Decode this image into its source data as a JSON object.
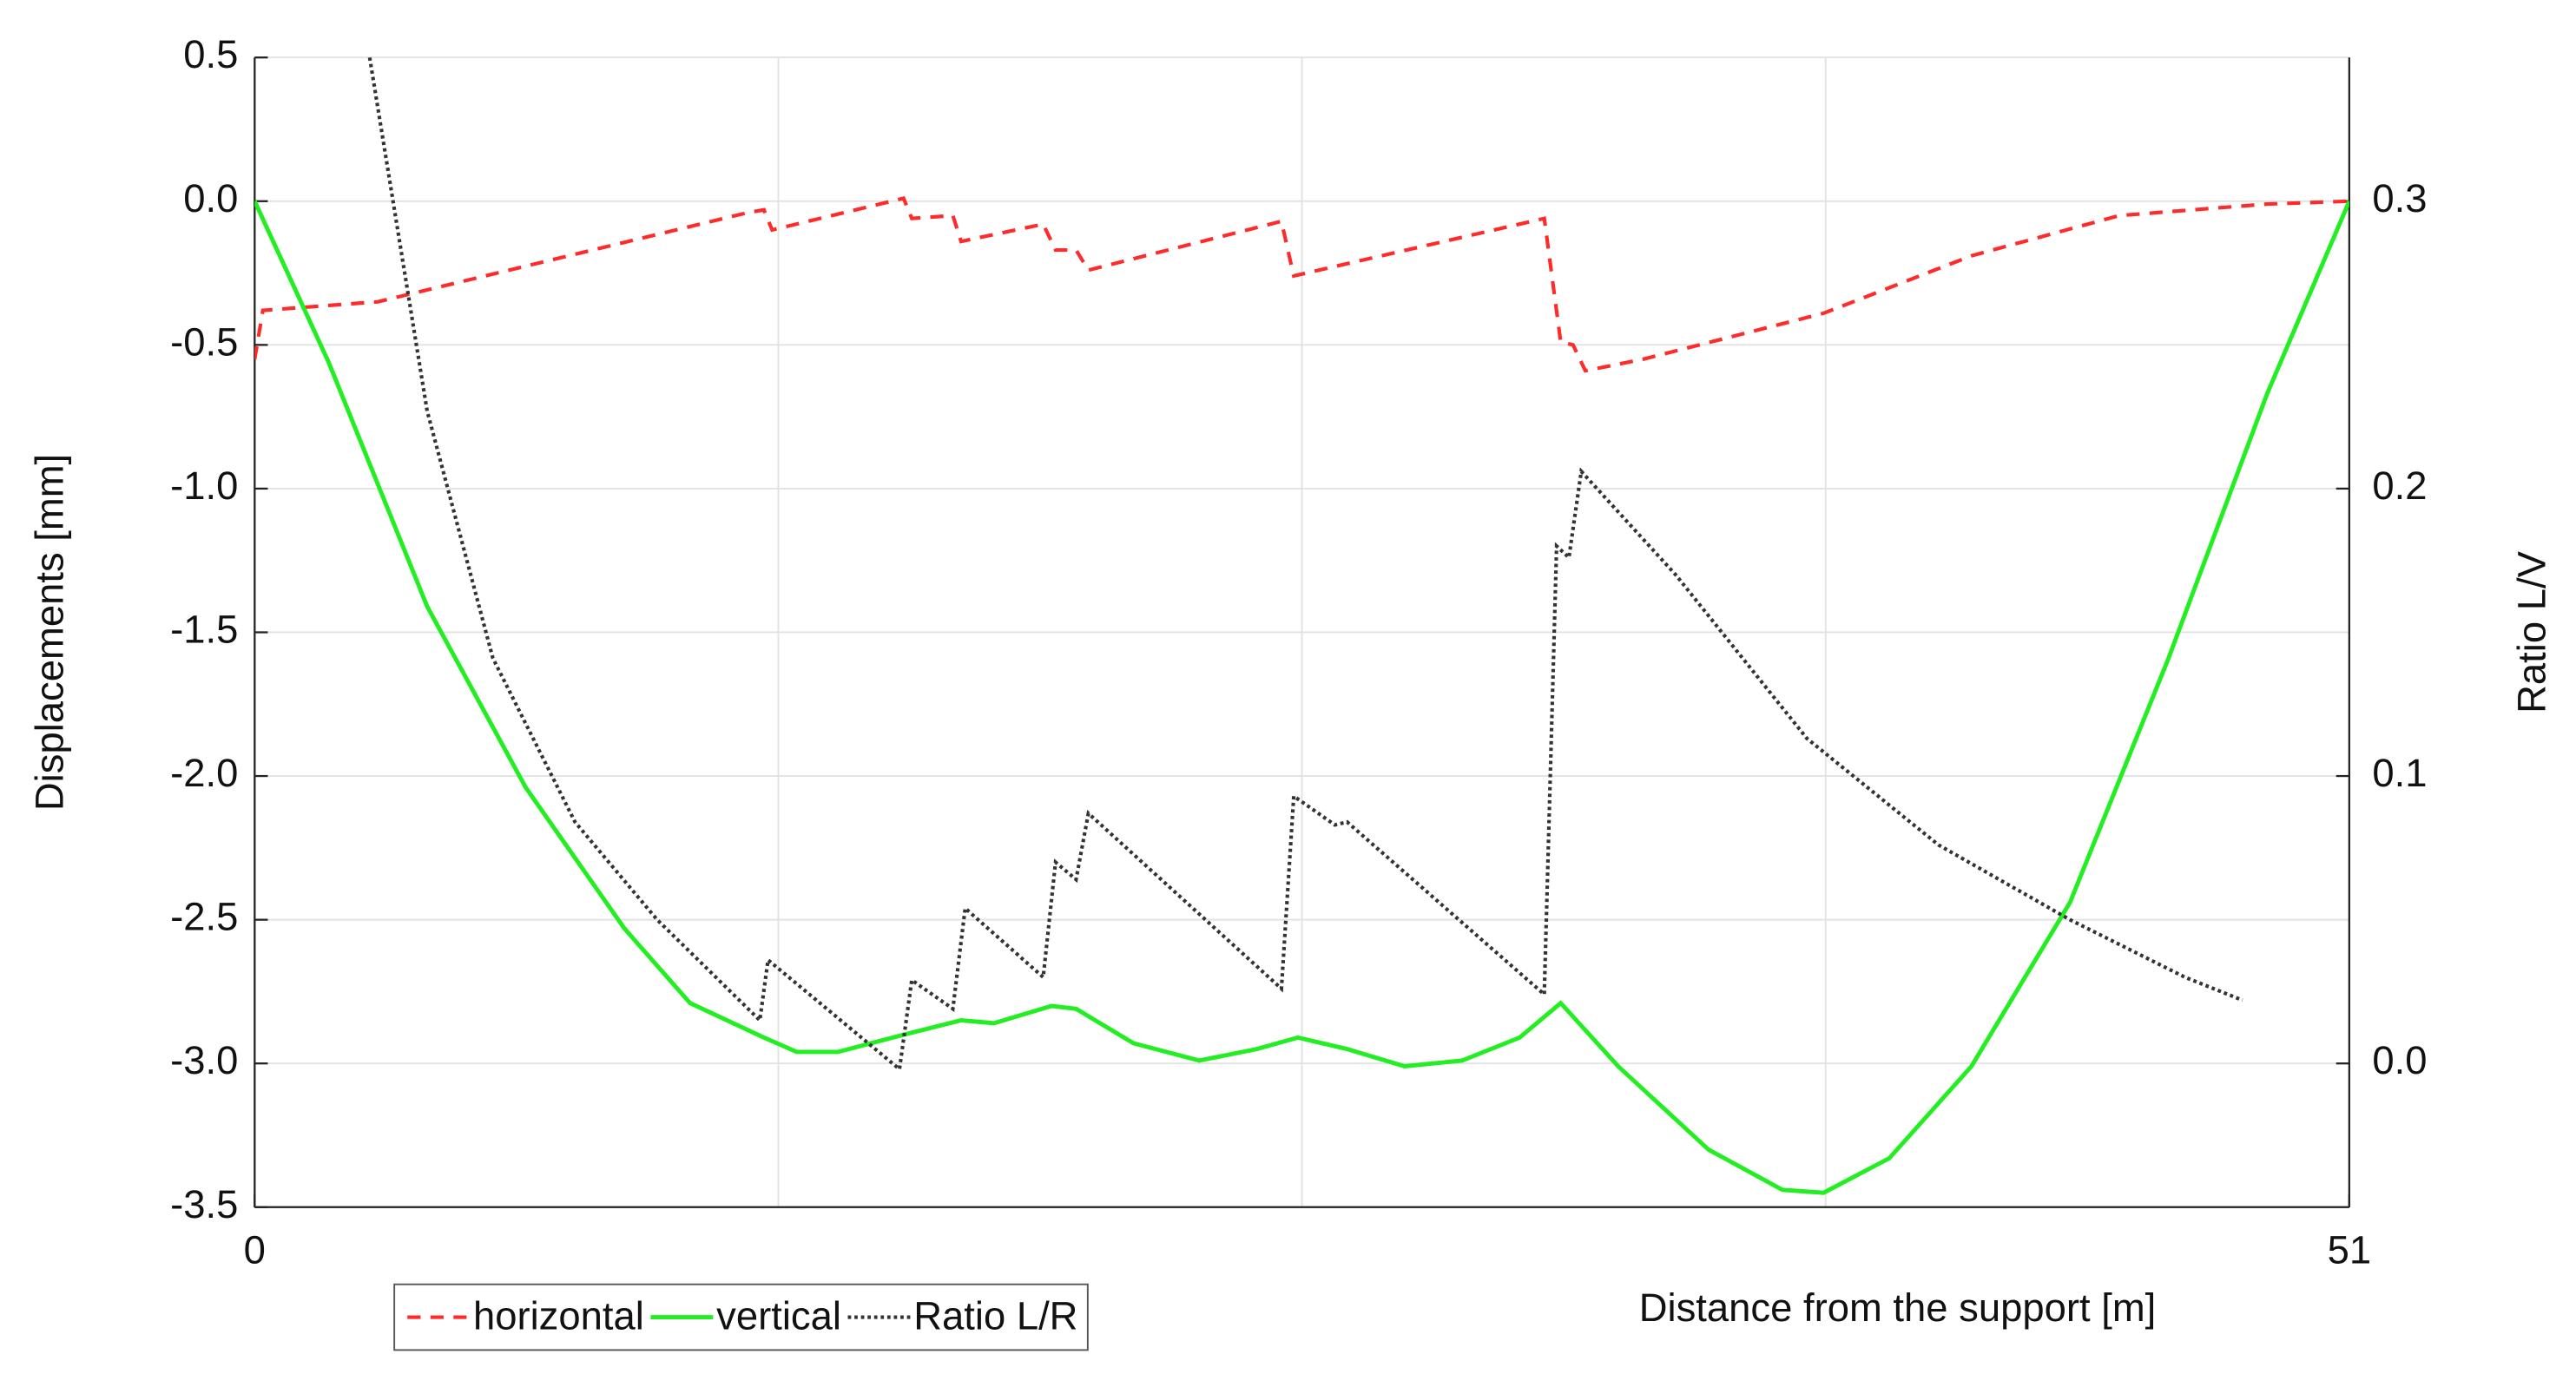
{
  "chart_data": {
    "type": "line",
    "xlabel": "Distance from the support [m]",
    "ylabel": "Displacements [mm]",
    "y2label": "Ratio L/V",
    "xlim": [
      0,
      51
    ],
    "xticks": [
      0,
      51
    ],
    "x_grid": [
      12.75,
      25.5,
      38.25
    ],
    "ylim": [
      -3.5,
      0.5
    ],
    "yticks": [
      0.5,
      {
        "value": 0,
        "label": "0.0"
      },
      -0.5,
      {
        "value": -1,
        "label": "-1.0"
      },
      -1.5,
      {
        "value": -2,
        "label": "-2.0"
      },
      -2.5,
      {
        "value": -3,
        "label": "-3.0"
      },
      -3.5
    ],
    "y2lim": [
      -0.05,
      0.35
    ],
    "y2ticks": [
      {
        "value": 0,
        "label": "0.0"
      },
      0.1,
      0.2,
      0.3
    ],
    "grid": true,
    "legend": "bottom-left",
    "series": [
      {
        "name": "horizontal",
        "color": "#ff2a2a",
        "dash": "dashed",
        "x": [
          0,
          0.2,
          3,
          12,
          12.4,
          12.6,
          15.8,
          16,
          17,
          17.2,
          19.2,
          19.5,
          20,
          20.3,
          25,
          25.3,
          31.4,
          31.8,
          32.1,
          32.4,
          33.8,
          38.2,
          41.8,
          45.4,
          49,
          51
        ],
        "values": [
          -0.55,
          -0.38,
          -0.35,
          -0.04,
          -0.03,
          -0.1,
          0.01,
          -0.06,
          -0.05,
          -0.14,
          -0.08,
          -0.17,
          -0.17,
          -0.24,
          -0.07,
          -0.26,
          -0.06,
          -0.49,
          -0.5,
          -0.59,
          -0.55,
          -0.39,
          -0.19,
          -0.05,
          -0.01,
          0
        ]
      },
      {
        "name": "vertical",
        "color": "#22ee22",
        "dash": "solid",
        "x": [
          0,
          1.8,
          4.2,
          6.6,
          9,
          10.6,
          12.4,
          13.2,
          14.2,
          15.8,
          17.2,
          18,
          19.4,
          20,
          21.4,
          23,
          24.4,
          25.4,
          26.6,
          28,
          29.4,
          30.8,
          31.8,
          33.2,
          35.4,
          37.2,
          38.2,
          39.8,
          41.8,
          44.2,
          46.6,
          49,
          51
        ],
        "values": [
          0,
          -0.56,
          -1.41,
          -2.04,
          -2.53,
          -2.79,
          -2.91,
          -2.96,
          -2.96,
          -2.9,
          -2.85,
          -2.86,
          -2.8,
          -2.81,
          -2.93,
          -2.99,
          -2.95,
          -2.91,
          -2.95,
          -3.01,
          -2.99,
          -2.91,
          -2.79,
          -3.01,
          -3.3,
          -3.44,
          -3.45,
          -3.33,
          -3.01,
          -2.44,
          -1.59,
          -0.67,
          0
        ]
      },
      {
        "name": "Ratio L/R",
        "color": "#333333",
        "dash": "dotted",
        "axis": "y2",
        "x": [
          2.8,
          4.2,
          5.8,
          7.8,
          9.8,
          12.3,
          12.5,
          15.7,
          16,
          17,
          17.3,
          19.2,
          19.5,
          20,
          20.3,
          25,
          25.3,
          26.3,
          26.6,
          31.4,
          31.7,
          32,
          32.3,
          34.6,
          37.8,
          41,
          44.2,
          47,
          48.4
        ],
        "values": [
          0.35,
          0.227,
          0.141,
          0.084,
          0.05,
          0.015,
          0.036,
          -0.002,
          0.029,
          0.019,
          0.054,
          0.03,
          0.07,
          0.064,
          0.087,
          0.026,
          0.093,
          0.083,
          0.084,
          0.024,
          0.18,
          0.176,
          0.206,
          0.17,
          0.113,
          0.076,
          0.05,
          0.03,
          0.022
        ]
      }
    ]
  }
}
